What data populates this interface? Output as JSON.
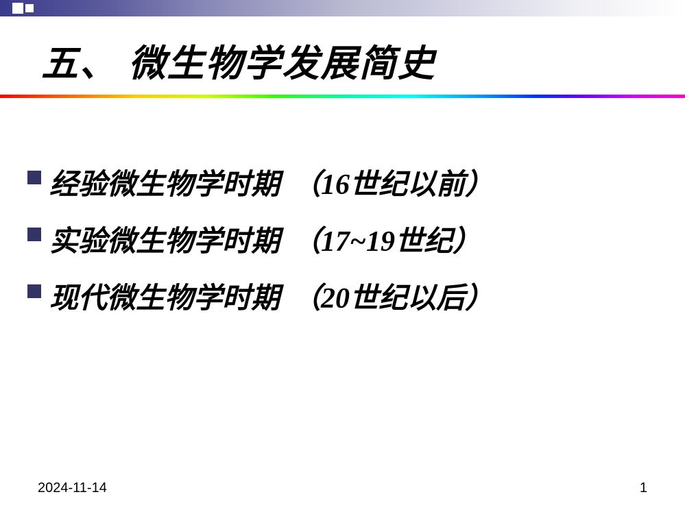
{
  "slide": {
    "title": "五、 微生物学发展简史",
    "items": [
      {
        "label": "经验微生物学时期",
        "suffix": "（16世纪以前）"
      },
      {
        "label": "实验微生物学时期",
        "suffix": "（17~19世纪）"
      },
      {
        "label": "现代微生物学时期",
        "suffix": "（20世纪以后）"
      }
    ],
    "footer": {
      "date": "2024-11-14",
      "page": "1"
    },
    "colors": {
      "topbar_gradient_start": "#3a3a8c",
      "topbar_gradient_end": "#ffffff",
      "bullet_color": "#333366",
      "text_color": "#000000",
      "background": "#ffffff"
    },
    "typography": {
      "title_fontsize": 54,
      "item_fontsize": 42,
      "footer_fontsize": 20,
      "font_family": "KaiTi"
    }
  }
}
